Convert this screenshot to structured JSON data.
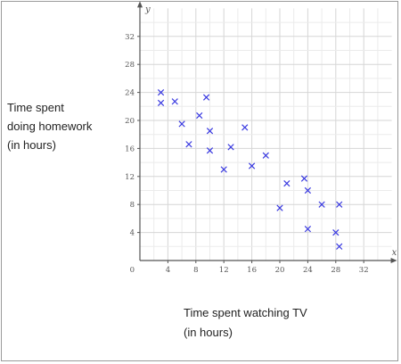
{
  "y_label_lines": [
    "Time spent",
    "doing homework",
    "(in hours)"
  ],
  "x_label_lines": [
    "Time spent watching TV",
    "(in hours)"
  ],
  "chart_data": {
    "type": "scatter",
    "x_axis_name": "x",
    "y_axis_name": "y",
    "origin_label": "0",
    "xlim": [
      0,
      36
    ],
    "ylim": [
      0,
      36
    ],
    "x_ticks": [
      4,
      8,
      12,
      16,
      20,
      24,
      28,
      32
    ],
    "y_ticks": [
      4,
      8,
      12,
      16,
      20,
      24,
      28,
      32
    ],
    "grid": true,
    "marker": "x",
    "marker_color": "#3a3ae0",
    "points": [
      {
        "x": 3,
        "y": 24
      },
      {
        "x": 3,
        "y": 22.5
      },
      {
        "x": 5,
        "y": 22.7
      },
      {
        "x": 6,
        "y": 19.5
      },
      {
        "x": 7,
        "y": 16.6
      },
      {
        "x": 8.5,
        "y": 20.7
      },
      {
        "x": 9.5,
        "y": 23.3
      },
      {
        "x": 10,
        "y": 18.5
      },
      {
        "x": 10,
        "y": 15.7
      },
      {
        "x": 12,
        "y": 13
      },
      {
        "x": 13,
        "y": 16.2
      },
      {
        "x": 15,
        "y": 19
      },
      {
        "x": 16,
        "y": 13.5
      },
      {
        "x": 18,
        "y": 15
      },
      {
        "x": 20,
        "y": 7.5
      },
      {
        "x": 21,
        "y": 11
      },
      {
        "x": 23.5,
        "y": 11.7
      },
      {
        "x": 24,
        "y": 10
      },
      {
        "x": 24,
        "y": 4.5
      },
      {
        "x": 26,
        "y": 8
      },
      {
        "x": 28,
        "y": 4
      },
      {
        "x": 28.5,
        "y": 8
      },
      {
        "x": 28.5,
        "y": 2
      }
    ]
  }
}
